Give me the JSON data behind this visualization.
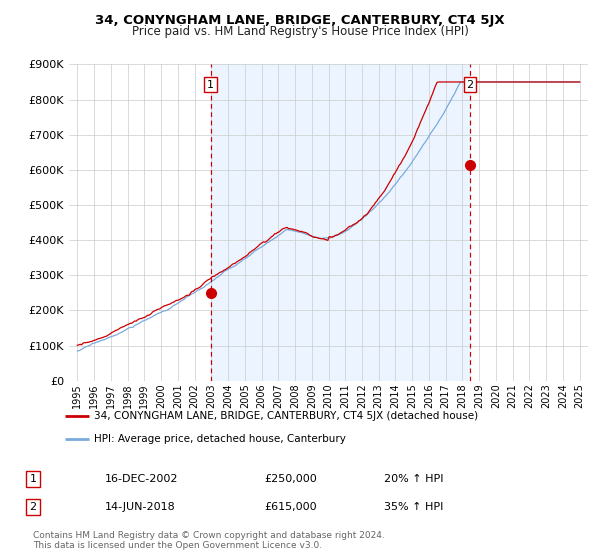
{
  "title": "34, CONYNGHAM LANE, BRIDGE, CANTERBURY, CT4 5JX",
  "subtitle": "Price paid vs. HM Land Registry's House Price Index (HPI)",
  "ytick_vals": [
    0,
    100000,
    200000,
    300000,
    400000,
    500000,
    600000,
    700000,
    800000,
    900000
  ],
  "ylim": [
    0,
    870000
  ],
  "xlim_start": 1994.5,
  "xlim_end": 2025.5,
  "sale1_x": 2002.96,
  "sale1_y": 250000,
  "sale2_x": 2018.45,
  "sale2_y": 615000,
  "red_line_color": "#cc0000",
  "blue_line_color": "#7aaadd",
  "vline_color": "#cc0000",
  "chart_bg_color": "#ddeeff",
  "background_color": "#ffffff",
  "grid_color": "#cccccc",
  "legend_label1": "34, CONYNGHAM LANE, BRIDGE, CANTERBURY, CT4 5JX (detached house)",
  "legend_label2": "HPI: Average price, detached house, Canterbury",
  "ann1_date": "16-DEC-2002",
  "ann1_price": "£250,000",
  "ann1_hpi": "20% ↑ HPI",
  "ann2_date": "14-JUN-2018",
  "ann2_price": "£615,000",
  "ann2_hpi": "35% ↑ HPI",
  "footnote": "Contains HM Land Registry data © Crown copyright and database right 2024.\nThis data is licensed under the Open Government Licence v3.0."
}
